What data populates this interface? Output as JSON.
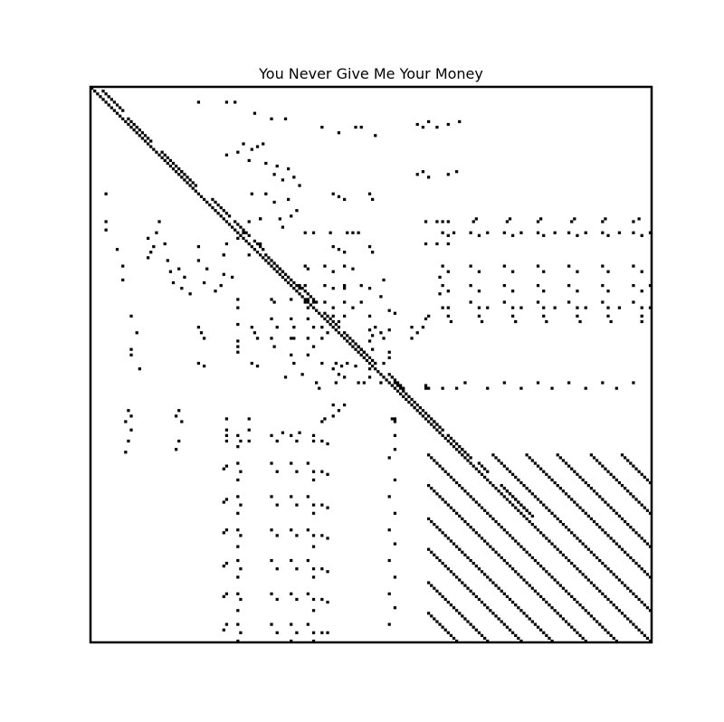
{
  "chart_data": {
    "type": "heatmap",
    "title": "You Never Give Me Your Money",
    "xlabel": "",
    "ylabel": "",
    "grid": false,
    "legend": false,
    "axes_ticks_visible": false,
    "matrix_size": 200,
    "cell_color": "#000000",
    "background_color": "#ffffff",
    "description_of_points": "binary self-similarity recurrence matrix; (i, j) are line indices of cells marked as a repeat",
    "main_diagonal": [
      [
        0,
        199
      ]
    ],
    "diagonal_segments": [
      [
        1,
        8,
        3
      ],
      [
        11,
        19,
        2
      ],
      [
        30,
        35,
        2
      ],
      [
        40,
        46,
        3
      ],
      [
        23,
        30,
        2
      ],
      [
        60,
        66,
        2
      ],
      [
        48,
        53,
        3
      ],
      [
        65,
        72,
        2
      ],
      [
        55,
        58,
        3
      ],
      [
        125,
        130,
        2
      ],
      [
        145,
        152,
        3
      ],
      [
        81,
        86,
        2
      ],
      [
        88,
        95,
        2
      ],
      [
        106,
        112,
        2
      ],
      [
        113,
        121,
        2
      ],
      [
        71,
        77,
        3
      ],
      [
        93,
        98,
        2
      ],
      [
        130,
        133,
        2
      ],
      [
        135,
        138,
        3
      ],
      [
        143,
        154,
        3
      ],
      [
        120,
        123,
        2
      ],
      [
        104,
        108,
        3
      ]
    ],
    "block_stripes": {
      "row_start": 132,
      "row_end": 199,
      "col_start": 120,
      "col_end": 199,
      "period": 11.5
    },
    "scatter_points": [
      [
        5,
        38
      ],
      [
        5,
        48
      ],
      [
        5,
        51
      ],
      [
        9,
        58
      ],
      [
        11,
        64
      ],
      [
        11,
        69
      ],
      [
        14,
        82
      ],
      [
        14,
        94
      ],
      [
        14,
        96
      ],
      [
        16,
        88
      ],
      [
        17,
        101
      ],
      [
        20,
        54
      ],
      [
        20,
        61
      ],
      [
        21,
        59
      ],
      [
        22,
        57
      ],
      [
        23,
        52
      ],
      [
        24,
        48
      ],
      [
        26,
        56
      ],
      [
        27,
        62
      ],
      [
        28,
        66
      ],
      [
        29,
        70
      ],
      [
        31,
        65
      ],
      [
        32,
        72
      ],
      [
        33,
        68
      ],
      [
        35,
        74
      ],
      [
        38,
        57
      ],
      [
        38,
        62
      ],
      [
        40,
        70
      ],
      [
        41,
        65
      ],
      [
        44,
        73
      ],
      [
        46,
        71
      ],
      [
        47,
        60
      ],
      [
        48,
        56
      ],
      [
        50,
        68
      ],
      [
        52,
        54
      ],
      [
        13,
        116
      ],
      [
        14,
        118
      ],
      [
        12,
        120
      ],
      [
        14,
        123
      ],
      [
        13,
        127
      ],
      [
        12,
        131
      ],
      [
        31,
        116
      ],
      [
        30,
        118
      ],
      [
        32,
        120
      ],
      [
        31,
        127
      ],
      [
        30,
        130
      ],
      [
        47,
        60
      ],
      [
        47,
        67
      ],
      [
        48,
        119
      ],
      [
        48,
        123
      ],
      [
        48,
        127
      ],
      [
        47,
        137
      ],
      [
        47,
        149
      ],
      [
        47,
        160
      ],
      [
        47,
        172
      ],
      [
        47,
        183
      ],
      [
        47,
        195
      ],
      [
        52,
        76
      ],
      [
        52,
        79
      ],
      [
        52,
        85
      ],
      [
        52,
        91
      ],
      [
        52,
        93
      ],
      [
        52,
        95
      ],
      [
        52,
        125
      ],
      [
        52,
        129
      ],
      [
        52,
        135
      ],
      [
        52,
        141
      ],
      [
        52,
        147
      ],
      [
        52,
        153
      ],
      [
        52,
        159
      ],
      [
        52,
        165
      ],
      [
        52,
        170
      ],
      [
        52,
        176
      ],
      [
        52,
        182
      ],
      [
        52,
        188
      ],
      [
        52,
        193
      ],
      [
        52,
        199
      ],
      [
        56,
        60
      ],
      [
        56,
        119
      ],
      [
        56,
        123
      ],
      [
        56,
        127
      ],
      [
        64,
        76
      ],
      [
        65,
        77
      ],
      [
        64,
        83
      ],
      [
        66,
        86
      ],
      [
        64,
        90
      ],
      [
        65,
        93
      ],
      [
        64,
        125
      ],
      [
        64,
        135
      ],
      [
        64,
        147
      ],
      [
        64,
        159
      ],
      [
        64,
        170
      ],
      [
        64,
        182
      ],
      [
        64,
        193
      ],
      [
        68,
        124
      ],
      [
        71,
        76
      ],
      [
        71,
        83
      ],
      [
        71,
        90
      ],
      [
        71,
        96
      ],
      [
        71,
        125
      ],
      [
        71,
        135
      ],
      [
        71,
        147
      ],
      [
        71,
        159
      ],
      [
        71,
        170
      ],
      [
        71,
        182
      ],
      [
        71,
        193
      ],
      [
        71,
        199
      ],
      [
        74,
        124
      ],
      [
        77,
        76
      ],
      [
        79,
        77
      ],
      [
        77,
        83
      ],
      [
        79,
        86
      ],
      [
        77,
        90
      ],
      [
        79,
        93
      ],
      [
        77,
        96
      ],
      [
        79,
        125
      ],
      [
        77,
        135
      ],
      [
        79,
        141
      ],
      [
        77,
        147
      ],
      [
        79,
        153
      ],
      [
        77,
        159
      ],
      [
        79,
        165
      ],
      [
        77,
        170
      ],
      [
        79,
        176
      ],
      [
        77,
        182
      ],
      [
        79,
        188
      ],
      [
        77,
        193
      ],
      [
        79,
        199
      ],
      [
        80,
        106
      ],
      [
        81,
        108
      ],
      [
        82,
        120
      ],
      [
        86,
        38
      ],
      [
        88,
        39
      ],
      [
        90,
        40
      ],
      [
        86,
        57
      ],
      [
        88,
        58
      ],
      [
        90,
        59
      ],
      [
        86,
        72
      ],
      [
        90,
        72
      ],
      [
        86,
        82
      ],
      [
        90,
        82
      ],
      [
        88,
        84
      ],
      [
        86,
        101
      ],
      [
        88,
        103
      ],
      [
        90,
        104
      ],
      [
        86,
        114
      ],
      [
        90,
        114
      ],
      [
        88,
        116
      ],
      [
        86,
        118
      ],
      [
        95,
        106
      ],
      [
        99,
        38
      ],
      [
        100,
        40
      ],
      [
        99,
        57
      ],
      [
        100,
        59
      ],
      [
        99,
        72
      ],
      [
        99,
        82
      ],
      [
        99,
        87
      ],
      [
        100,
        89
      ],
      [
        99,
        91
      ],
      [
        100,
        94
      ],
      [
        99,
        101
      ],
      [
        99,
        104
      ],
      [
        104,
        69
      ],
      [
        103,
        75
      ],
      [
        106,
        87
      ],
      [
        106,
        97
      ],
      [
        106,
        103
      ],
      [
        107,
        119
      ],
      [
        108,
        120
      ],
      [
        106,
        133
      ],
      [
        106,
        147
      ],
      [
        106,
        159
      ],
      [
        106,
        170
      ],
      [
        106,
        182
      ],
      [
        106,
        193
      ],
      [
        119,
        83
      ],
      [
        119,
        108
      ],
      [
        125,
        48
      ],
      [
        125,
        108
      ],
      [
        127,
        53
      ],
      [
        127,
        66
      ],
      [
        127,
        73
      ],
      [
        127,
        79
      ],
      [
        127,
        82
      ],
      [
        128,
        84
      ],
      [
        130,
        108
      ],
      [
        136,
        48
      ],
      [
        138,
        53
      ],
      [
        138,
        66
      ],
      [
        138,
        73
      ],
      [
        138,
        79
      ],
      [
        138,
        82
      ],
      [
        139,
        84
      ],
      [
        141,
        108
      ],
      [
        148,
        48
      ],
      [
        150,
        53
      ],
      [
        150,
        66
      ],
      [
        150,
        73
      ],
      [
        150,
        79
      ],
      [
        150,
        82
      ],
      [
        151,
        84
      ],
      [
        153,
        108
      ],
      [
        159,
        48
      ],
      [
        161,
        53
      ],
      [
        161,
        66
      ],
      [
        161,
        73
      ],
      [
        161,
        79
      ],
      [
        161,
        82
      ],
      [
        162,
        84
      ],
      [
        164,
        108
      ],
      [
        171,
        48
      ],
      [
        173,
        53
      ],
      [
        173,
        66
      ],
      [
        173,
        73
      ],
      [
        173,
        79
      ],
      [
        173,
        82
      ],
      [
        174,
        84
      ],
      [
        176,
        108
      ],
      [
        182,
        48
      ],
      [
        184,
        53
      ],
      [
        184,
        66
      ],
      [
        184,
        73
      ],
      [
        184,
        79
      ],
      [
        184,
        82
      ],
      [
        185,
        84
      ],
      [
        187,
        108
      ],
      [
        193,
        48
      ],
      [
        196,
        53
      ],
      [
        196,
        66
      ],
      [
        196,
        73
      ],
      [
        196,
        79
      ],
      [
        196,
        82
      ],
      [
        196,
        84
      ]
    ]
  }
}
